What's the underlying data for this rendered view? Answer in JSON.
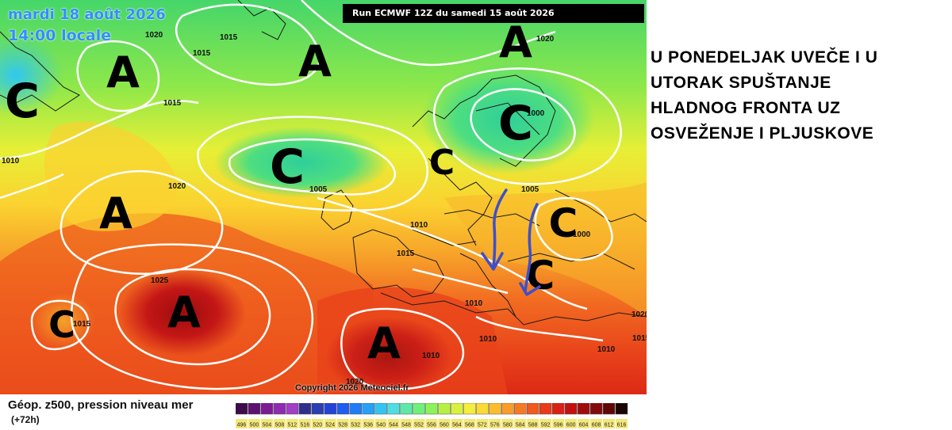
{
  "map": {
    "date_label": "mardi 18 août 2026",
    "time_label": "14:00 locale",
    "run_label": "Run ECMWF 12Z du samedi 15 août 2026",
    "copyright": "Copyright 2026 Meteociel.fr",
    "highs_label": "A",
    "lows_label": "C",
    "pressure_labels": [
      "1020",
      "1015",
      "1015",
      "1020",
      "1015",
      "1010",
      "1020",
      "1005",
      "1010",
      "1000",
      "1005",
      "1000",
      "1015",
      "1025",
      "1010",
      "1015",
      "1010",
      "1010",
      "1020",
      "1010",
      "1015",
      "1020"
    ],
    "arrow_color": "#3f4fc8",
    "contour_color": "#ffffff"
  },
  "caption": {
    "lines": [
      "U PONEDELJAK UVEČE I U",
      "UTORAK SPUŠTANJE",
      "HLADNOG FRONTA UZ",
      "OSVEŽENJE I PLJUSKOVE"
    ]
  },
  "legend": {
    "title": "Géop. z500, pression niveau mer",
    "subtitle": "(+72h)",
    "values": [
      "496",
      "500",
      "504",
      "508",
      "512",
      "516",
      "520",
      "524",
      "528",
      "532",
      "536",
      "540",
      "544",
      "548",
      "552",
      "556",
      "560",
      "564",
      "568",
      "572",
      "576",
      "580",
      "584",
      "588",
      "592",
      "596",
      "600",
      "604",
      "608",
      "612",
      "616"
    ],
    "colors": [
      "#3d0a4a",
      "#5c1170",
      "#7b1a94",
      "#8e2bb0",
      "#a03ec6",
      "#2e2f8c",
      "#2a3fb0",
      "#2244d6",
      "#1f5cf0",
      "#1f7cf5",
      "#27a0f5",
      "#33c4f2",
      "#4fdde0",
      "#5ee8a8",
      "#6ef07a",
      "#8ef25a",
      "#b6f044",
      "#d8f03e",
      "#f3ef3c",
      "#fbd936",
      "#fbbd30",
      "#f99d2a",
      "#f57a24",
      "#f05a1e",
      "#e83a18",
      "#d92014",
      "#c01010",
      "#a00c0c",
      "#820a0a",
      "#5e0808",
      "#1a0404"
    ]
  }
}
